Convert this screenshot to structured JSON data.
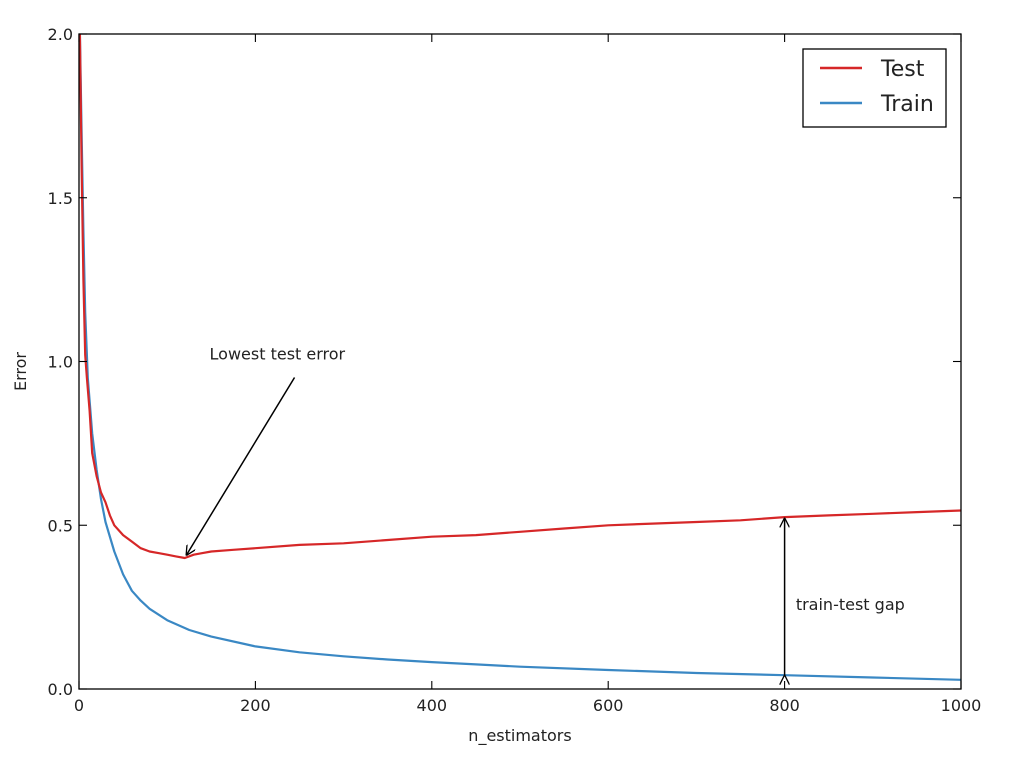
{
  "chart_data": {
    "type": "line",
    "xlabel": "n_estimators",
    "ylabel": "Error",
    "xlim": [
      0,
      1000
    ],
    "ylim": [
      0.0,
      2.0
    ],
    "x_ticks": [
      0,
      200,
      400,
      600,
      800,
      1000
    ],
    "y_ticks": [
      0.0,
      0.5,
      1.0,
      1.5,
      2.0
    ],
    "x_tick_labels": [
      "0",
      "200",
      "400",
      "600",
      "800",
      "1000"
    ],
    "y_tick_labels": [
      "0.0",
      "0.5",
      "1.0",
      "1.5",
      "2.0"
    ],
    "grid": false,
    "legend": {
      "position": "top-right",
      "entries": [
        "Test",
        "Train"
      ]
    },
    "series": [
      {
        "name": "Test",
        "color": "#d62728",
        "x": [
          1,
          3,
          5,
          7,
          9,
          12,
          15,
          20,
          25,
          30,
          35,
          40,
          50,
          60,
          70,
          80,
          90,
          100,
          110,
          120,
          130,
          140,
          150,
          175,
          200,
          250,
          300,
          350,
          400,
          450,
          500,
          550,
          600,
          650,
          700,
          750,
          800,
          850,
          900,
          950,
          1000
        ],
        "y": [
          2.0,
          1.6,
          1.25,
          1.02,
          0.95,
          0.85,
          0.72,
          0.65,
          0.6,
          0.57,
          0.53,
          0.5,
          0.47,
          0.45,
          0.43,
          0.42,
          0.415,
          0.41,
          0.405,
          0.4,
          0.41,
          0.415,
          0.42,
          0.425,
          0.43,
          0.44,
          0.445,
          0.455,
          0.465,
          0.47,
          0.48,
          0.49,
          0.5,
          0.505,
          0.51,
          0.515,
          0.525,
          0.53,
          0.535,
          0.54,
          0.545
        ]
      },
      {
        "name": "Train",
        "color": "#3a88c4",
        "x": [
          1,
          3,
          5,
          7,
          10,
          15,
          20,
          25,
          30,
          40,
          50,
          60,
          70,
          80,
          100,
          125,
          150,
          200,
          250,
          300,
          350,
          400,
          450,
          500,
          600,
          700,
          800,
          900,
          1000
        ],
        "y": [
          2.0,
          1.7,
          1.4,
          1.15,
          0.95,
          0.78,
          0.67,
          0.58,
          0.51,
          0.42,
          0.35,
          0.3,
          0.27,
          0.245,
          0.21,
          0.18,
          0.16,
          0.13,
          0.112,
          0.1,
          0.09,
          0.082,
          0.075,
          0.068,
          0.058,
          0.049,
          0.042,
          0.035,
          0.028
        ]
      }
    ],
    "annotations": [
      {
        "text": "Lowest test error",
        "text_at": [
          148,
          1.0
        ],
        "arrow_to": [
          122,
          0.41
        ]
      },
      {
        "text": "train-test gap",
        "text_at": [
          815,
          0.26
        ],
        "arrow_from": [
          800,
          0.04
        ],
        "arrow_to": [
          800,
          0.52
        ]
      }
    ]
  }
}
